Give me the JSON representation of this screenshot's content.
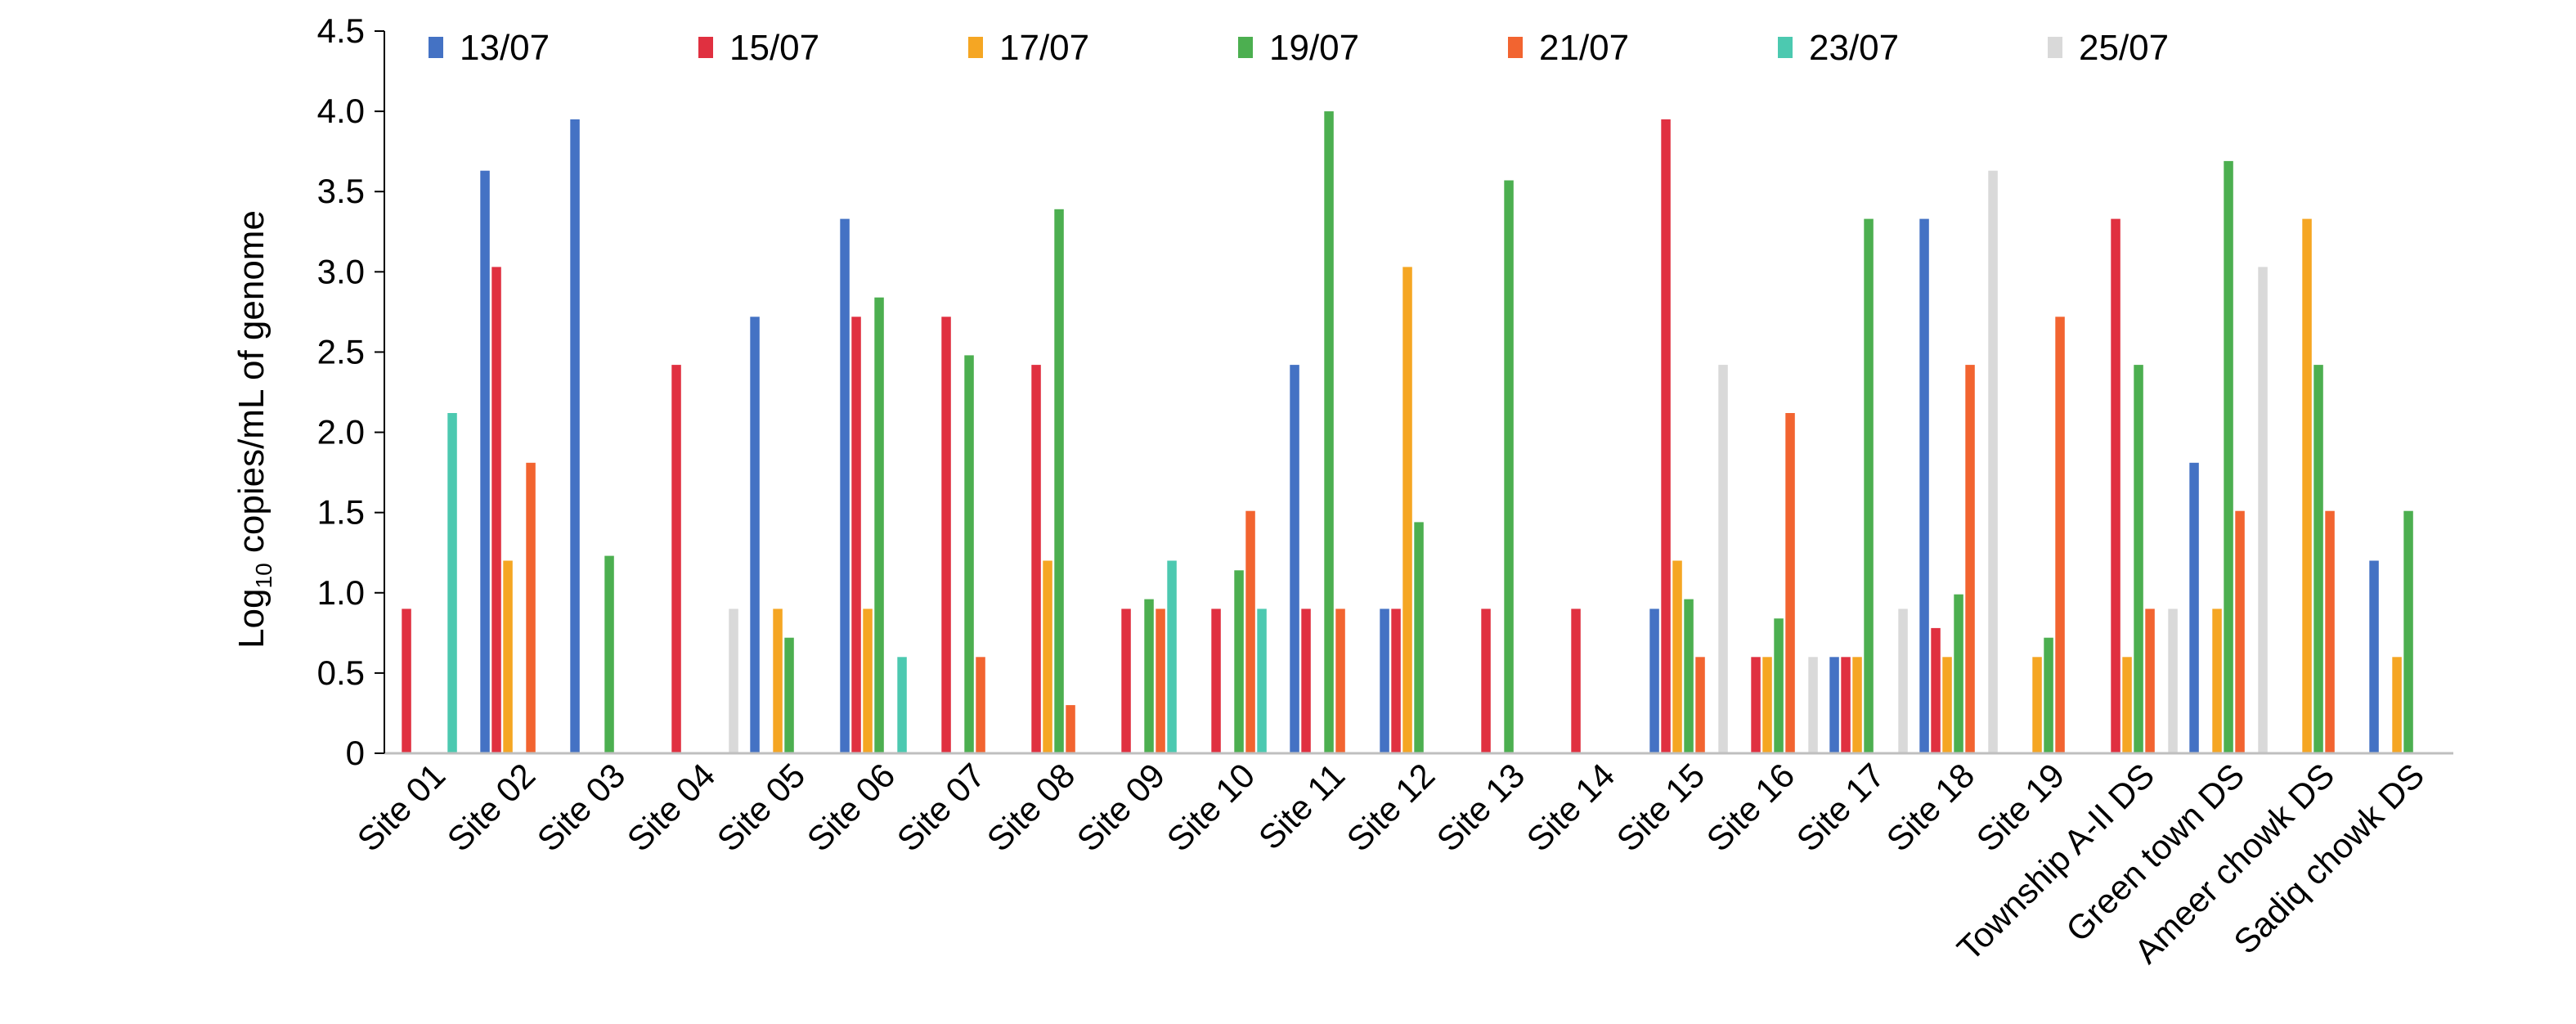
{
  "chart_data": {
    "type": "bar",
    "title": "",
    "xlabel": "",
    "ylabel_parts": [
      "Log",
      "10",
      " copies/mL of genome"
    ],
    "ylim": [
      0,
      4.5
    ],
    "yticks": [
      "0",
      "0.5",
      "1.0",
      "1.5",
      "2.0",
      "2.5",
      "3.0",
      "3.5",
      "4.0",
      "4.5"
    ],
    "grid": false,
    "legend_position": "top",
    "categories": [
      "Site 01",
      "Site 02",
      "Site 03",
      "Site 04",
      "Site 05",
      "Site 06",
      "Site 07",
      "Site 08",
      "Site 09",
      "Site 10",
      "Site 11",
      "Site 12",
      "Site 13",
      "Site 14",
      "Site 15",
      "Site 16",
      "Site 17",
      "Site 18",
      "Site 19",
      "Township A-II DS",
      "Green town DS",
      "Ameer chowk DS",
      "Sadiq chowk DS"
    ],
    "series": [
      {
        "name": "13/07",
        "color": "#4472c4",
        "values": [
          0,
          3.63,
          3.95,
          0,
          2.72,
          3.33,
          0,
          0,
          0,
          0,
          2.42,
          0.9,
          0,
          0,
          0.9,
          0,
          0.6,
          3.33,
          0,
          0,
          1.81,
          0,
          1.2
        ]
      },
      {
        "name": "15/07",
        "color": "#e03040",
        "values": [
          0.9,
          3.03,
          0,
          2.42,
          0,
          2.72,
          2.72,
          2.42,
          0.9,
          0.9,
          0.9,
          0.9,
          0.9,
          0.9,
          3.95,
          0.6,
          0.6,
          0.78,
          0,
          3.33,
          0,
          0,
          0
        ]
      },
      {
        "name": "17/07",
        "color": "#f5a623",
        "values": [
          0,
          1.2,
          0,
          0,
          0.9,
          0.9,
          0,
          1.2,
          0,
          0,
          0,
          3.03,
          0,
          0,
          1.2,
          0.6,
          0.6,
          0.6,
          0.6,
          0.6,
          0.9,
          3.33,
          0.6
        ]
      },
      {
        "name": "19/07",
        "color": "#4caf50",
        "values": [
          0,
          0,
          1.23,
          0,
          0.72,
          2.84,
          2.48,
          3.39,
          0.96,
          1.14,
          4.0,
          1.44,
          3.57,
          0,
          0.96,
          0.84,
          3.33,
          0.99,
          0.72,
          2.42,
          3.69,
          2.42,
          1.51
        ]
      },
      {
        "name": "21/07",
        "color": "#f26430",
        "values": [
          0,
          1.81,
          0,
          0,
          0,
          0,
          0.6,
          0.3,
          0.9,
          1.51,
          0.9,
          0,
          0,
          0,
          0.6,
          2.12,
          0,
          2.42,
          2.72,
          0.9,
          1.51,
          1.51,
          0
        ]
      },
      {
        "name": "23/07",
        "color": "#4cc9b0",
        "values": [
          2.12,
          0,
          0,
          0,
          0,
          0.6,
          0,
          0,
          1.2,
          0.9,
          0,
          0,
          0,
          0,
          0,
          0,
          0,
          0,
          0,
          0,
          0,
          0,
          0
        ]
      },
      {
        "name": "25/07",
        "color": "#d9d9d9",
        "values": [
          0,
          0,
          0,
          0.9,
          0,
          0,
          0,
          0,
          0,
          0,
          0,
          0,
          0,
          0,
          2.42,
          0.6,
          0.9,
          3.63,
          0,
          0.9,
          3.03,
          0,
          0
        ]
      }
    ]
  }
}
